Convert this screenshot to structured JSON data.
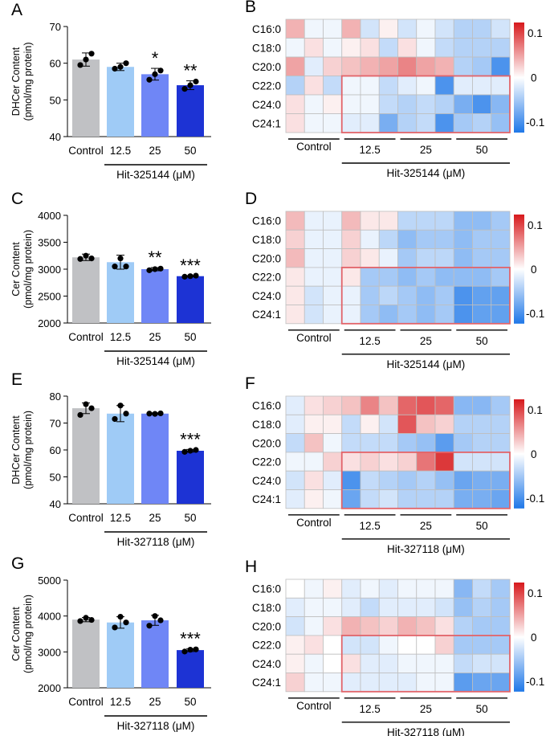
{
  "figure": {
    "rows": [
      {
        "bar": {
          "letter": "A",
          "ylabel": [
            "DHCer Content",
            "(pmol/mg protein)"
          ],
          "ymin": 40,
          "ymax": 70,
          "ticks": [
            40,
            50,
            60,
            70
          ],
          "xlabel": "Hit-325144 (μM)"
        },
        "heat": {
          "letter": "B",
          "scale_labels": [
            "0.1",
            "0",
            "-0.1"
          ],
          "xlabel": "Hit-325144 (μM)"
        }
      },
      {
        "bar": {
          "letter": "C",
          "ylabel": [
            "Cer Content",
            "(pmol/mg protein)"
          ],
          "ymin": 2000,
          "ymax": 4000,
          "ticks": [
            2000,
            2500,
            3000,
            3500,
            4000
          ],
          "xlabel": "Hit-325144 (μM)"
        },
        "heat": {
          "letter": "D",
          "scale_labels": [
            "0.1",
            "0",
            "-0.1"
          ],
          "xlabel": "Hit-325144 (μM)"
        }
      },
      {
        "bar": {
          "letter": "E",
          "ylabel": [
            "DHCer Content",
            "(pmol/mg protein)"
          ],
          "ymin": 40,
          "ymax": 80,
          "ticks": [
            40,
            50,
            60,
            70,
            80
          ],
          "xlabel": "Hit-327118 (μM)"
        },
        "heat": {
          "letter": "F",
          "scale_labels": [
            "0.1",
            "0",
            "-0.1"
          ],
          "xlabel": "Hit-327118 (μM)"
        }
      },
      {
        "bar": {
          "letter": "G",
          "ylabel": [
            "Cer Content",
            "(pmol/mg protein)"
          ],
          "ymin": 2000,
          "ymax": 5000,
          "ticks": [
            2000,
            3000,
            4000,
            5000
          ],
          "xlabel": "Hit-327118 (μM)"
        },
        "heat": {
          "letter": "H",
          "scale_labels": [
            "0.1",
            "0",
            "-0.1"
          ],
          "xlabel": "Hit-327118 (μM)"
        }
      }
    ],
    "groups": [
      "Control",
      "12.5",
      "25",
      "50"
    ],
    "heat_rows": [
      "C16:0",
      "C18:0",
      "C20:0",
      "C22:0",
      "C24:0",
      "C24:1"
    ],
    "colors": {
      "control": "#c0c1c4",
      "c12": "#9fcbf6",
      "c25": "#6f86f6",
      "c50": "#1d33d4",
      "highlight": "#e2646a",
      "heat_red": "#d7191c",
      "heat_blue": "#1f78e8"
    }
  },
  "chart_data": [
    {
      "type": "bar",
      "panel": "A",
      "categories": [
        "Control",
        "12.5",
        "25",
        "50"
      ],
      "values": [
        61,
        59,
        57,
        54
      ],
      "errors": [
        1.8,
        1,
        1.6,
        1.2
      ],
      "points": [
        [
          59.5,
          61,
          62.6
        ],
        [
          58.5,
          59,
          60
        ],
        [
          55.5,
          57,
          58
        ],
        [
          53,
          54,
          55
        ]
      ],
      "significance": [
        "",
        "",
        "*",
        "**"
      ],
      "ylabel": "DHCer Content (pmol/mg protein)",
      "xlabel": "Hit-325144 (μM)",
      "ylim": [
        40,
        70
      ]
    },
    {
      "type": "heatmap",
      "panel": "B",
      "rows": [
        "C16:0",
        "C18:0",
        "C20:0",
        "C22:0",
        "C24:0",
        "C24:1"
      ],
      "col_groups": [
        "Control",
        "12.5",
        "25",
        "50"
      ],
      "cols_per_group": 3,
      "range": [
        -0.15,
        0.15
      ],
      "values": [
        [
          0.05,
          -0.01,
          -0.01,
          0.05,
          -0.03,
          0.01,
          -0.03,
          -0.01,
          -0.03,
          -0.05,
          -0.05,
          -0.03
        ],
        [
          -0.01,
          0.02,
          -0.01,
          0.01,
          0.02,
          -0.04,
          0.02,
          -0.01,
          -0.04,
          -0.05,
          -0.05,
          -0.05
        ],
        [
          0.06,
          -0.02,
          0.03,
          0.04,
          0.05,
          0.06,
          0.08,
          0.06,
          0.05,
          -0.05,
          -0.06,
          -0.12
        ],
        [
          -0.05,
          0.02,
          -0.04,
          -0.01,
          -0.01,
          -0.04,
          -0.02,
          -0.01,
          -0.12,
          -0.02,
          -0.02,
          -0.02
        ],
        [
          0.02,
          -0.01,
          0.01,
          -0.01,
          -0.01,
          -0.04,
          -0.05,
          -0.04,
          -0.05,
          -0.09,
          -0.12,
          -0.08
        ],
        [
          0.02,
          -0.01,
          -0.01,
          -0.02,
          -0.02,
          -0.09,
          -0.05,
          -0.04,
          -0.12,
          -0.06,
          -0.05,
          -0.07
        ]
      ],
      "highlight": {
        "rows": [
          "C22:0",
          "C24:1"
        ],
        "groups": [
          "12.5",
          "50"
        ]
      },
      "xlabel": "Hit-325144 (μM)"
    },
    {
      "type": "bar",
      "panel": "C",
      "categories": [
        "Control",
        "12.5",
        "25",
        "50"
      ],
      "values": [
        3220,
        3130,
        3000,
        2870
      ],
      "errors": [
        60,
        130,
        30,
        10
      ],
      "points": [
        [
          3190,
          3250,
          3200
        ],
        [
          3050,
          3200,
          3050
        ],
        [
          2980,
          3000,
          3010
        ],
        [
          2860,
          2870,
          2880
        ]
      ],
      "significance": [
        "",
        "",
        "**",
        "***"
      ],
      "ylabel": "Cer Content (pmol/mg protein)",
      "xlabel": "Hit-325144 (μM)",
      "ylim": [
        2000,
        4000
      ]
    },
    {
      "type": "heatmap",
      "panel": "D",
      "rows": [
        "C16:0",
        "C18:0",
        "C20:0",
        "C22:0",
        "C24:0",
        "C24:1"
      ],
      "col_groups": [
        "Control",
        "12.5",
        "25",
        "50"
      ],
      "cols_per_group": 3,
      "range": [
        -0.1,
        0.1
      ],
      "values": [
        [
          0.03,
          -0.01,
          -0.01,
          0.03,
          0.01,
          0.01,
          -0.03,
          -0.03,
          -0.03,
          -0.05,
          -0.05,
          -0.04
        ],
        [
          0.02,
          -0.01,
          -0.01,
          0.02,
          -0.01,
          -0.03,
          -0.05,
          -0.04,
          -0.04,
          -0.05,
          -0.04,
          -0.04
        ],
        [
          0.03,
          -0.01,
          -0.01,
          0.02,
          0.01,
          -0.01,
          -0.04,
          -0.03,
          -0.03,
          -0.05,
          -0.04,
          -0.04
        ],
        [
          0.01,
          -0.01,
          -0.01,
          0.01,
          -0.04,
          -0.04,
          -0.05,
          -0.04,
          -0.05,
          -0.05,
          -0.05,
          -0.04
        ],
        [
          0.01,
          -0.02,
          -0.01,
          -0.01,
          -0.04,
          -0.03,
          -0.04,
          -0.05,
          -0.04,
          -0.08,
          -0.07,
          -0.07
        ],
        [
          0.01,
          -0.02,
          -0.01,
          -0.01,
          -0.04,
          -0.05,
          -0.04,
          -0.05,
          -0.04,
          -0.08,
          -0.07,
          -0.07
        ]
      ],
      "highlight": {
        "rows": [
          "C22:0",
          "C24:1"
        ],
        "groups": [
          "12.5",
          "50"
        ]
      },
      "xlabel": "Hit-325144 (μM)"
    },
    {
      "type": "bar",
      "panel": "E",
      "categories": [
        "Control",
        "12.5",
        "25",
        "50"
      ],
      "values": [
        75.5,
        73.5,
        73.5,
        59.7
      ],
      "errors": [
        2,
        3,
        0.3,
        0.5
      ],
      "points": [
        [
          73,
          77,
          75.5
        ],
        [
          71.5,
          76.5,
          73.5
        ],
        [
          73.5,
          73.4,
          73.6
        ],
        [
          59.3,
          59.7,
          60
        ]
      ],
      "significance": [
        "",
        "",
        "",
        "***"
      ],
      "ylabel": "DHCer Content (pmol/mg protein)",
      "xlabel": "Hit-327118 (μM)",
      "ylim": [
        40,
        80
      ]
    },
    {
      "type": "heatmap",
      "panel": "F",
      "rows": [
        "C16:0",
        "C18:0",
        "C20:0",
        "C22:0",
        "C24:0",
        "C24:1"
      ],
      "col_groups": [
        "Control",
        "12.5",
        "25",
        "50"
      ],
      "cols_per_group": 3,
      "range": [
        -0.15,
        0.15
      ],
      "values": [
        [
          -0.02,
          0.02,
          0.03,
          0.04,
          0.08,
          0.04,
          0.1,
          0.11,
          0.1,
          -0.08,
          -0.08,
          -0.06
        ],
        [
          -0.02,
          0.01,
          0.01,
          -0.04,
          0.01,
          -0.03,
          0.11,
          0.04,
          0.03,
          -0.05,
          -0.05,
          -0.05
        ],
        [
          -0.04,
          0.04,
          -0.01,
          -0.04,
          -0.04,
          -0.04,
          -0.06,
          -0.07,
          -0.11,
          -0.06,
          -0.05,
          -0.05
        ],
        [
          -0.01,
          -0.01,
          0.03,
          0.02,
          0.03,
          0.02,
          0.03,
          0.09,
          0.13,
          -0.03,
          -0.03,
          -0.03
        ],
        [
          -0.03,
          0.02,
          -0.02,
          -0.12,
          -0.04,
          -0.05,
          -0.06,
          -0.05,
          -0.07,
          -0.1,
          -0.09,
          -0.09
        ],
        [
          -0.02,
          0.01,
          -0.01,
          -0.1,
          -0.04,
          -0.03,
          -0.05,
          -0.05,
          -0.05,
          -0.09,
          -0.09,
          -0.1
        ]
      ],
      "highlight": {
        "rows": [
          "C22:0",
          "C24:1"
        ],
        "groups": [
          "12.5",
          "50"
        ]
      },
      "xlabel": "Hit-327118 (μM)"
    },
    {
      "type": "bar",
      "panel": "G",
      "categories": [
        "Control",
        "12.5",
        "25",
        "50"
      ],
      "values": [
        3900,
        3820,
        3880,
        3050
      ],
      "errors": [
        60,
        160,
        140,
        40
      ],
      "points": [
        [
          3860,
          3950,
          3890
        ],
        [
          3680,
          3980,
          3820
        ],
        [
          3730,
          4000,
          3880
        ],
        [
          3010,
          3060,
          3070
        ]
      ],
      "significance": [
        "",
        "",
        "",
        "***"
      ],
      "ylabel": "Cer Content (pmol/mg protein)",
      "xlabel": "Hit-327118 (μM)",
      "ylim": [
        2000,
        5000
      ]
    },
    {
      "type": "heatmap",
      "panel": "H",
      "rows": [
        "C16:0",
        "C18:0",
        "C20:0",
        "C22:0",
        "C24:0",
        "C24:1"
      ],
      "col_groups": [
        "Control",
        "12.5",
        "25",
        "50"
      ],
      "cols_per_group": 3,
      "range": [
        -0.15,
        0.15
      ],
      "values": [
        [
          0,
          -0.01,
          0.01,
          -0.02,
          -0.01,
          -0.02,
          -0.01,
          -0.01,
          -0.01,
          -0.08,
          -0.04,
          -0.06
        ],
        [
          -0.02,
          -0.01,
          -0.01,
          -0.02,
          -0.04,
          -0.02,
          -0.02,
          -0.02,
          -0.03,
          -0.07,
          -0.05,
          -0.06
        ],
        [
          -0.03,
          -0.01,
          0.02,
          0.05,
          0.04,
          0.03,
          0.05,
          0.04,
          0.02,
          -0.05,
          -0.06,
          -0.06
        ],
        [
          0.01,
          0.02,
          0,
          -0.03,
          -0.03,
          -0.01,
          0,
          0,
          0.03,
          -0.06,
          -0.06,
          -0.06
        ],
        [
          0.01,
          -0.01,
          0,
          0.02,
          -0.02,
          -0.02,
          -0.01,
          -0.01,
          -0.01,
          -0.04,
          -0.03,
          -0.03
        ],
        [
          0.03,
          -0.01,
          -0.01,
          -0.02,
          -0.02,
          -0.02,
          -0.02,
          -0.01,
          -0.01,
          -0.11,
          -0.1,
          -0.1
        ]
      ],
      "highlight": {
        "rows": [
          "C22:0",
          "C24:1"
        ],
        "groups": [
          "12.5",
          "50"
        ]
      },
      "xlabel": "Hit-327118 (μM)"
    }
  ]
}
